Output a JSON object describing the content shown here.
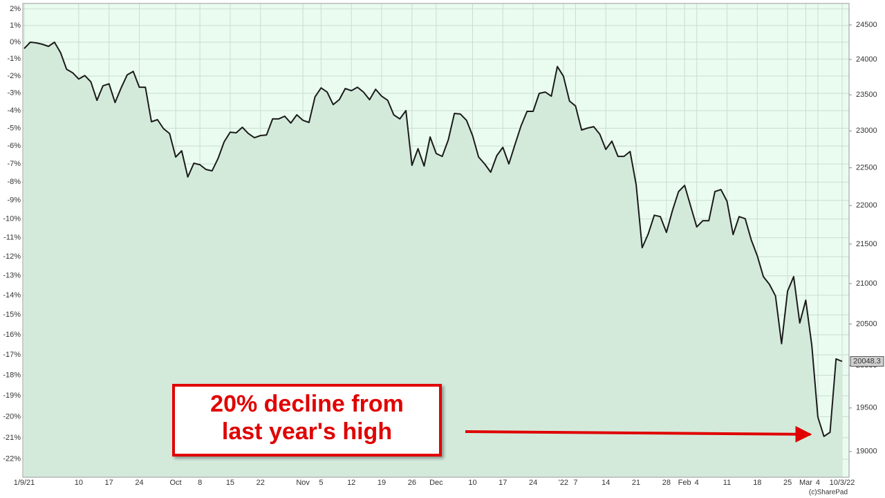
{
  "chart_data": {
    "type": "area-line",
    "log_scale": true,
    "grid": true,
    "plot_color": "#eafcef",
    "area_color": "#d3eadb",
    "categories": [
      "1/9/21",
      null,
      null,
      null,
      null,
      null,
      null,
      null,
      null,
      "10",
      null,
      null,
      null,
      null,
      "17",
      null,
      null,
      null,
      null,
      "24",
      null,
      null,
      null,
      null,
      null,
      "Oct",
      null,
      null,
      null,
      "8",
      null,
      null,
      null,
      null,
      "15",
      null,
      null,
      null,
      null,
      "22",
      null,
      null,
      null,
      null,
      null,
      null,
      "Nov",
      null,
      null,
      "5",
      null,
      null,
      null,
      null,
      "12",
      null,
      null,
      null,
      null,
      "19",
      null,
      null,
      null,
      null,
      "26",
      null,
      null,
      null,
      "Dec",
      null,
      null,
      null,
      null,
      null,
      "10",
      null,
      null,
      null,
      null,
      "17",
      null,
      null,
      null,
      null,
      "24",
      null,
      null,
      null,
      null,
      "'22",
      null,
      "7",
      null,
      null,
      null,
      null,
      "14",
      null,
      null,
      null,
      null,
      "21",
      null,
      null,
      null,
      null,
      "28",
      null,
      null,
      "Feb",
      null,
      "4",
      null,
      null,
      null,
      null,
      "11",
      null,
      null,
      null,
      null,
      "18",
      null,
      null,
      null,
      null,
      "25",
      null,
      null,
      "Mar",
      null,
      "4",
      null,
      null,
      null,
      "10/3/22"
    ],
    "series": [
      {
        "color": "#1a1a1a",
        "values": [
          24157,
          24249,
          24239,
          24219,
          24189,
          24249,
          24098,
          23861,
          23811,
          23722,
          23772,
          23683,
          23423,
          23626,
          23655,
          23393,
          23597,
          23782,
          23831,
          23607,
          23607,
          23126,
          23155,
          23031,
          22964,
          22645,
          22729,
          22377,
          22561,
          22542,
          22478,
          22459,
          22626,
          22851,
          22983,
          22974,
          23050,
          22964,
          22907,
          22936,
          22945,
          23165,
          23165,
          23203,
          23108,
          23222,
          23146,
          23117,
          23471,
          23597,
          23539,
          23364,
          23432,
          23588,
          23558,
          23607,
          23539,
          23432,
          23578,
          23481,
          23423,
          23222,
          23165,
          23280,
          22533,
          22757,
          22524,
          22917,
          22692,
          22654,
          22879,
          23241,
          23232,
          23146,
          22936,
          22645,
          22552,
          22441,
          22664,
          22776,
          22552,
          22813,
          23069,
          23270,
          23270,
          23520,
          23539,
          23481,
          23900,
          23762,
          23413,
          23345,
          23012,
          23040,
          23059,
          22955,
          22748,
          22860,
          22654,
          22654,
          22720,
          22274,
          21454,
          21632,
          21873,
          21855,
          21650,
          21935,
          22183,
          22265,
          21992,
          21721,
          21802,
          21802,
          22183,
          22210,
          22056,
          21623,
          21855,
          21828,
          21552,
          21350,
          21087,
          20991,
          20846,
          20261,
          20906,
          21087,
          20512,
          20793,
          20236,
          19394,
          19172,
          19219,
          20078,
          20048.3
        ]
      }
    ],
    "ylim": [
      18711,
      24815
    ],
    "yticks": [
      19000,
      19500,
      20000,
      20500,
      21000,
      21500,
      22000,
      22500,
      23000,
      23500,
      24000,
      24500
    ],
    "y2ticks": [
      {
        "value": 24734,
        "label": "2%"
      },
      {
        "value": 24491,
        "label": "1%"
      },
      {
        "value": 24249,
        "label": "0%"
      },
      {
        "value": 24007,
        "label": "-1%"
      },
      {
        "value": 23764,
        "label": "-2%"
      },
      {
        "value": 23522,
        "label": "-3%"
      },
      {
        "value": 23279,
        "label": "-4%"
      },
      {
        "value": 23037,
        "label": "-5%"
      },
      {
        "value": 22794,
        "label": "-6%"
      },
      {
        "value": 22552,
        "label": "-7%"
      },
      {
        "value": 22309,
        "label": "-8%"
      },
      {
        "value": 22067,
        "label": "-9%"
      },
      {
        "value": 21824,
        "label": "-10%"
      },
      {
        "value": 21582,
        "label": "-11%"
      },
      {
        "value": 21339,
        "label": "-12%"
      },
      {
        "value": 21097,
        "label": "-13%"
      },
      {
        "value": 20854,
        "label": "-14%"
      },
      {
        "value": 20612,
        "label": "-15%"
      },
      {
        "value": 20369,
        "label": "-16%"
      },
      {
        "value": 20127,
        "label": "-17%"
      },
      {
        "value": 19884,
        "label": "-18%"
      },
      {
        "value": 19642,
        "label": "-19%"
      },
      {
        "value": 19399,
        "label": "-20%"
      },
      {
        "value": 19157,
        "label": "-21%"
      },
      {
        "value": 18914,
        "label": "-22%"
      }
    ],
    "annotation": [
      "20% decline from",
      "last year's high"
    ],
    "credit": "(c)SharePad"
  }
}
